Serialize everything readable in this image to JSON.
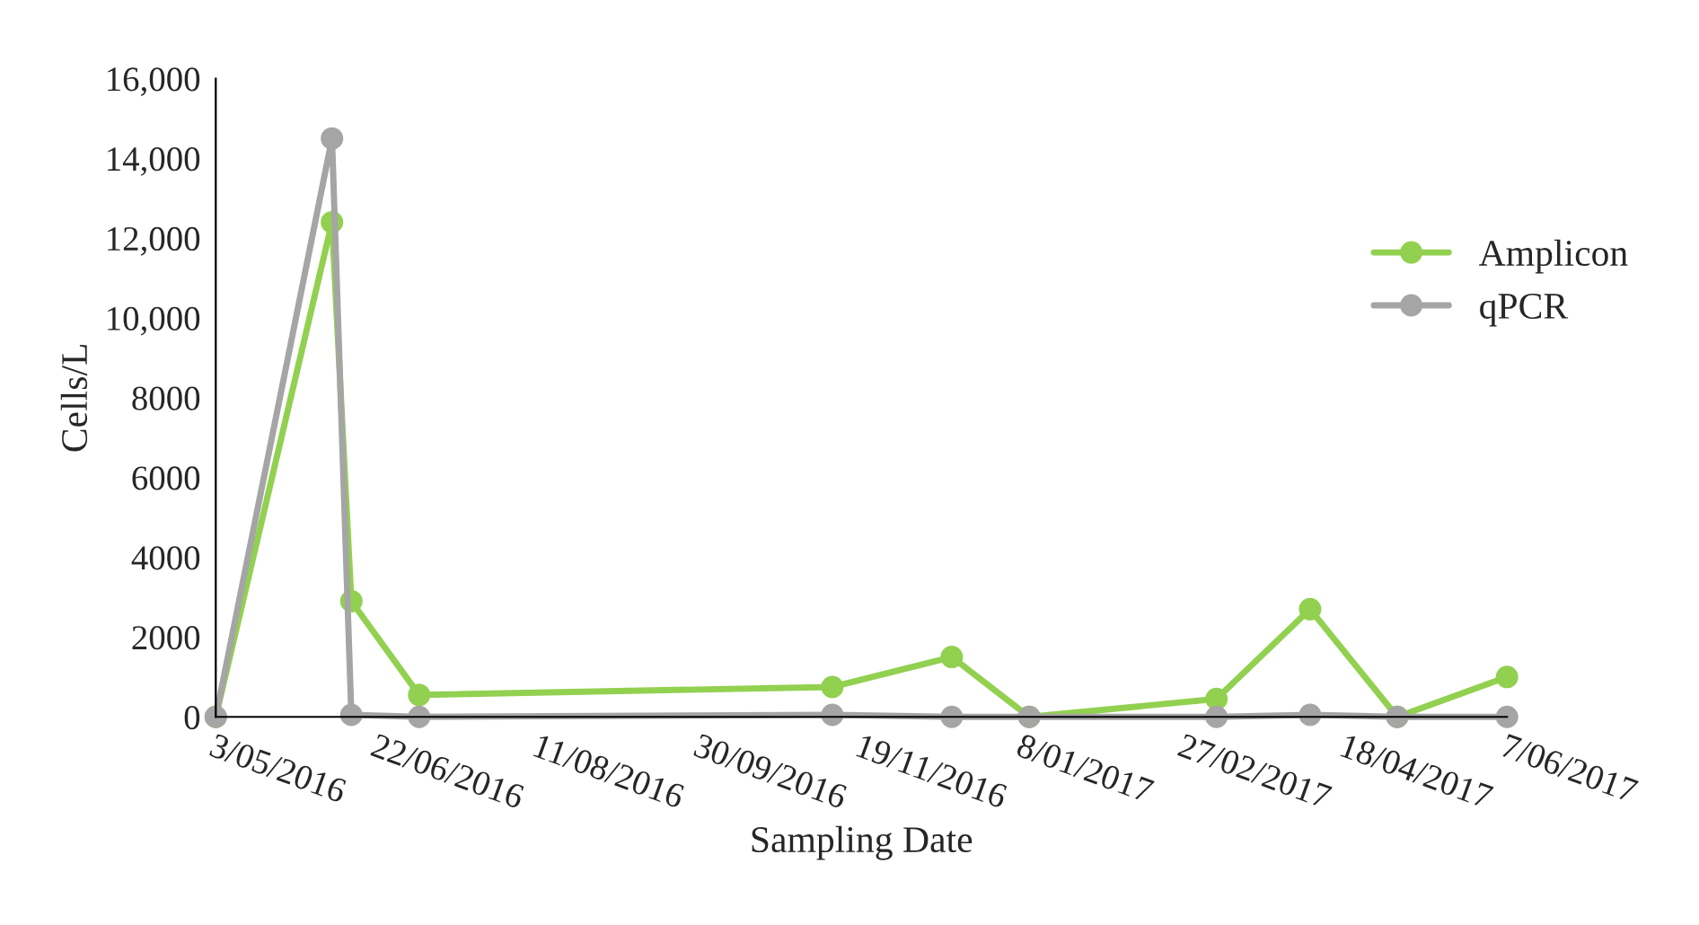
{
  "chart_data": {
    "type": "line",
    "xlabel": "Sampling Date",
    "ylabel": "Cells/L",
    "x": [
      "2016-05-03",
      "2016-06-08",
      "2016-06-14",
      "2016-07-05",
      "2016-11-10",
      "2016-12-17",
      "2017-01-10",
      "2017-03-09",
      "2017-04-07",
      "2017-05-04",
      "2017-06-07"
    ],
    "series": [
      {
        "name": "Amplicon",
        "color": "#92d050",
        "values": [
          0,
          12400,
          2900,
          550,
          750,
          1500,
          0,
          450,
          2700,
          0,
          1000
        ]
      },
      {
        "name": "qPCR",
        "color": "#a5a5a5",
        "values": [
          0,
          14500,
          50,
          0,
          50,
          0,
          0,
          0,
          50,
          0,
          0
        ]
      }
    ],
    "xlim": [
      "2016-05-03",
      "2017-06-07"
    ],
    "xticks": [
      {
        "value": "2016-05-03",
        "label": "3/05/2016"
      },
      {
        "value": "2016-06-22",
        "label": "22/06/2016"
      },
      {
        "value": "2016-08-11",
        "label": "11/08/2016"
      },
      {
        "value": "2016-09-30",
        "label": "30/09/2016"
      },
      {
        "value": "2016-11-19",
        "label": "19/11/2016"
      },
      {
        "value": "2017-01-08",
        "label": "8/01/2017"
      },
      {
        "value": "2017-02-27",
        "label": "27/02/2017"
      },
      {
        "value": "2017-04-18",
        "label": "18/04/2017"
      },
      {
        "value": "2017-06-07",
        "label": "7/06/2017"
      }
    ],
    "ylim": [
      0,
      16000
    ],
    "yticks": [
      0,
      {
        "value": 2000,
        "label": "2000"
      },
      {
        "value": 4000,
        "label": "4000"
      },
      {
        "value": 6000,
        "label": "6000"
      },
      {
        "value": 8000,
        "label": "8000"
      },
      {
        "value": 10000,
        "label": "10,000"
      },
      {
        "value": 12000,
        "label": "12,000"
      },
      {
        "value": 14000,
        "label": "14,000"
      },
      {
        "value": 16000,
        "label": "16,000"
      }
    ],
    "marker": "circle",
    "line_style": "solid",
    "grid": false,
    "legend": "right"
  }
}
